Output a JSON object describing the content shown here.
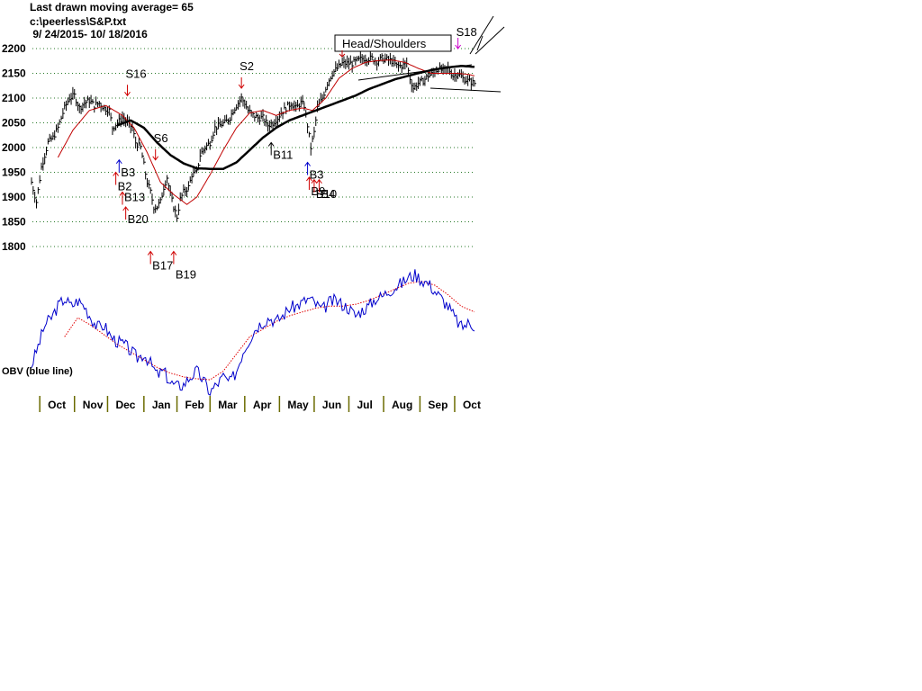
{
  "header": {
    "line1": "Last drawn moving average= 65",
    "line2": "c:\\peerless\\S&P.txt",
    "line3": " 9/ 24/2015- 10/ 18/2016"
  },
  "chart_data": {
    "type": "line",
    "price_yticks": [
      2200,
      2150,
      2100,
      2050,
      2000,
      1950,
      1900,
      1850,
      1800
    ],
    "price_ylim": [
      1790,
      2210
    ],
    "months": [
      "Oct",
      "Nov",
      "Dec",
      "Jan",
      "Feb",
      "Mar",
      "Apr",
      "May",
      "Jun",
      "Jul",
      "Aug",
      "Sep",
      "Oct"
    ],
    "x_index_range": [
      0,
      268
    ],
    "price_close_anchors": [
      [
        0,
        1930
      ],
      [
        3,
        1890
      ],
      [
        6,
        1960
      ],
      [
        10,
        2010
      ],
      [
        13,
        2020
      ],
      [
        16,
        2040
      ],
      [
        20,
        2080
      ],
      [
        23,
        2100
      ],
      [
        26,
        2105
      ],
      [
        29,
        2080
      ],
      [
        32,
        2090
      ],
      [
        35,
        2095
      ],
      [
        38,
        2085
      ],
      [
        41,
        2090
      ],
      [
        44,
        2080
      ],
      [
        47,
        2075
      ],
      [
        49,
        2040
      ],
      [
        52,
        2050
      ],
      [
        55,
        2060
      ],
      [
        58,
        2050
      ],
      [
        61,
        2040
      ],
      [
        63,
        2010
      ],
      [
        66,
        2000
      ],
      [
        68,
        1965
      ],
      [
        70,
        1930
      ],
      [
        72,
        1910
      ],
      [
        74,
        1880
      ],
      [
        76,
        1880
      ],
      [
        78,
        1890
      ],
      [
        80,
        1920
      ],
      [
        82,
        1940
      ],
      [
        84,
        1905
      ],
      [
        86,
        1880
      ],
      [
        88,
        1860
      ],
      [
        90,
        1895
      ],
      [
        92,
        1910
      ],
      [
        95,
        1920
      ],
      [
        97,
        1945
      ],
      [
        100,
        1950
      ],
      [
        102,
        1985
      ],
      [
        105,
        2000
      ],
      [
        108,
        2010
      ],
      [
        111,
        2040
      ],
      [
        114,
        2045
      ],
      [
        117,
        2050
      ],
      [
        120,
        2060
      ],
      [
        122,
        2075
      ],
      [
        125,
        2090
      ],
      [
        127,
        2100
      ],
      [
        129,
        2090
      ],
      [
        131,
        2075
      ],
      [
        134,
        2065
      ],
      [
        137,
        2060
      ],
      [
        140,
        2060
      ],
      [
        143,
        2045
      ],
      [
        146,
        2050
      ],
      [
        149,
        2060
      ],
      [
        151,
        2070
      ],
      [
        154,
        2080
      ],
      [
        157,
        2090
      ],
      [
        160,
        2080
      ],
      [
        163,
        2090
      ],
      [
        165,
        2085
      ],
      [
        167,
        2045
      ],
      [
        169,
        2000
      ],
      [
        171,
        2030
      ],
      [
        173,
        2080
      ],
      [
        176,
        2100
      ],
      [
        179,
        2130
      ],
      [
        182,
        2150
      ],
      [
        185,
        2160
      ],
      [
        188,
        2170
      ],
      [
        191,
        2170
      ],
      [
        194,
        2170
      ],
      [
        197,
        2175
      ],
      [
        200,
        2180
      ],
      [
        203,
        2180
      ],
      [
        206,
        2180
      ],
      [
        209,
        2175
      ],
      [
        212,
        2180
      ],
      [
        215,
        2178
      ],
      [
        218,
        2175
      ],
      [
        221,
        2165
      ],
      [
        224,
        2165
      ],
      [
        227,
        2170
      ],
      [
        229,
        2140
      ],
      [
        231,
        2120
      ],
      [
        234,
        2130
      ],
      [
        237,
        2135
      ],
      [
        240,
        2145
      ],
      [
        243,
        2150
      ],
      [
        246,
        2160
      ],
      [
        249,
        2155
      ],
      [
        252,
        2160
      ],
      [
        255,
        2145
      ],
      [
        258,
        2150
      ],
      [
        261,
        2140
      ],
      [
        264,
        2135
      ],
      [
        268,
        2130
      ]
    ],
    "ma21_anchors": [
      [
        16,
        1980
      ],
      [
        25,
        2035
      ],
      [
        35,
        2075
      ],
      [
        45,
        2085
      ],
      [
        55,
        2065
      ],
      [
        62,
        2040
      ],
      [
        70,
        1990
      ],
      [
        78,
        1930
      ],
      [
        86,
        1905
      ],
      [
        94,
        1885
      ],
      [
        100,
        1900
      ],
      [
        108,
        1945
      ],
      [
        116,
        1995
      ],
      [
        124,
        2040
      ],
      [
        132,
        2070
      ],
      [
        140,
        2075
      ],
      [
        148,
        2065
      ],
      [
        156,
        2075
      ],
      [
        164,
        2080
      ],
      [
        170,
        2075
      ],
      [
        178,
        2100
      ],
      [
        186,
        2140
      ],
      [
        194,
        2160
      ],
      [
        202,
        2172
      ],
      [
        210,
        2176
      ],
      [
        218,
        2177
      ],
      [
        226,
        2172
      ],
      [
        234,
        2160
      ],
      [
        242,
        2150
      ],
      [
        250,
        2150
      ],
      [
        258,
        2150
      ],
      [
        264,
        2148
      ],
      [
        268,
        2145
      ]
    ],
    "ma65_anchors": [
      [
        52,
        2045
      ],
      [
        60,
        2055
      ],
      [
        68,
        2040
      ],
      [
        76,
        2010
      ],
      [
        84,
        1985
      ],
      [
        92,
        1968
      ],
      [
        100,
        1958
      ],
      [
        108,
        1957
      ],
      [
        116,
        1957
      ],
      [
        124,
        1970
      ],
      [
        132,
        1995
      ],
      [
        140,
        2020
      ],
      [
        148,
        2040
      ],
      [
        156,
        2055
      ],
      [
        164,
        2065
      ],
      [
        172,
        2075
      ],
      [
        180,
        2085
      ],
      [
        188,
        2095
      ],
      [
        196,
        2105
      ],
      [
        204,
        2118
      ],
      [
        212,
        2128
      ],
      [
        220,
        2138
      ],
      [
        228,
        2145
      ],
      [
        236,
        2152
      ],
      [
        244,
        2158
      ],
      [
        252,
        2162
      ],
      [
        260,
        2165
      ],
      [
        268,
        2163
      ]
    ],
    "obv_anchors": [
      [
        0,
        30
      ],
      [
        4,
        50
      ],
      [
        8,
        72
      ],
      [
        12,
        80
      ],
      [
        16,
        92
      ],
      [
        20,
        100
      ],
      [
        24,
        92
      ],
      [
        28,
        98
      ],
      [
        32,
        92
      ],
      [
        36,
        80
      ],
      [
        40,
        70
      ],
      [
        44,
        72
      ],
      [
        48,
        60
      ],
      [
        52,
        55
      ],
      [
        56,
        52
      ],
      [
        60,
        45
      ],
      [
        64,
        38
      ],
      [
        68,
        42
      ],
      [
        72,
        32
      ],
      [
        76,
        20
      ],
      [
        80,
        24
      ],
      [
        84,
        12
      ],
      [
        88,
        8
      ],
      [
        92,
        10
      ],
      [
        96,
        18
      ],
      [
        100,
        24
      ],
      [
        104,
        14
      ],
      [
        108,
        2
      ],
      [
        112,
        10
      ],
      [
        116,
        18
      ],
      [
        120,
        12
      ],
      [
        124,
        24
      ],
      [
        128,
        45
      ],
      [
        132,
        58
      ],
      [
        136,
        70
      ],
      [
        140,
        76
      ],
      [
        144,
        80
      ],
      [
        148,
        76
      ],
      [
        152,
        82
      ],
      [
        156,
        90
      ],
      [
        160,
        92
      ],
      [
        164,
        96
      ],
      [
        168,
        100
      ],
      [
        172,
        94
      ],
      [
        176,
        88
      ],
      [
        180,
        96
      ],
      [
        184,
        98
      ],
      [
        188,
        94
      ],
      [
        192,
        90
      ],
      [
        196,
        82
      ],
      [
        200,
        88
      ],
      [
        204,
        92
      ],
      [
        208,
        100
      ],
      [
        212,
        102
      ],
      [
        216,
        108
      ],
      [
        220,
        112
      ],
      [
        224,
        116
      ],
      [
        228,
        122
      ],
      [
        232,
        125
      ],
      [
        236,
        120
      ],
      [
        240,
        116
      ],
      [
        244,
        108
      ],
      [
        248,
        100
      ],
      [
        252,
        92
      ],
      [
        256,
        80
      ],
      [
        260,
        70
      ],
      [
        264,
        74
      ],
      [
        268,
        72
      ]
    ],
    "obv_ma_anchors": [
      [
        20,
        60
      ],
      [
        28,
        80
      ],
      [
        36,
        72
      ],
      [
        44,
        62
      ],
      [
        52,
        52
      ],
      [
        60,
        44
      ],
      [
        68,
        36
      ],
      [
        76,
        28
      ],
      [
        84,
        22
      ],
      [
        92,
        18
      ],
      [
        100,
        16
      ],
      [
        108,
        15
      ],
      [
        116,
        24
      ],
      [
        124,
        42
      ],
      [
        132,
        60
      ],
      [
        140,
        68
      ],
      [
        148,
        76
      ],
      [
        156,
        82
      ],
      [
        164,
        86
      ],
      [
        172,
        90
      ],
      [
        180,
        92
      ],
      [
        188,
        92
      ],
      [
        196,
        94
      ],
      [
        204,
        98
      ],
      [
        212,
        104
      ],
      [
        220,
        110
      ],
      [
        228,
        116
      ],
      [
        236,
        118
      ],
      [
        244,
        114
      ],
      [
        252,
        104
      ],
      [
        260,
        92
      ],
      [
        268,
        86
      ]
    ],
    "obv_label": "OBV (blue line)",
    "head_shoulders_label": "Head/Shoulders",
    "signals": [
      {
        "label": "S16",
        "x": 58,
        "price": 2105,
        "dir": "down",
        "color": "red",
        "text_dy": -6
      },
      {
        "label": "S6",
        "x": 75,
        "price": 1975,
        "dir": "down",
        "color": "red",
        "text_dy": -6
      },
      {
        "label": "S2",
        "x": 127,
        "price": 2120,
        "dir": "down",
        "color": "red",
        "text_dy": -6
      },
      {
        "label": "B3",
        "x": 53,
        "price": 1975,
        "dir": "up",
        "color": "blue",
        "text_dy": 18
      },
      {
        "label": "B2",
        "x": 51,
        "price": 1950,
        "dir": "up",
        "color": "red",
        "text_dy": 20
      },
      {
        "label": "B13",
        "x": 55,
        "price": 1910,
        "dir": "up",
        "color": "red",
        "text_dy": 10
      },
      {
        "label": "B20",
        "x": 57,
        "price": 1880,
        "dir": "up",
        "color": "red",
        "text_dy": 18
      },
      {
        "label": "B17",
        "x": 72,
        "price": 1790,
        "dir": "up",
        "color": "red",
        "text_dy": 20
      },
      {
        "label": "B19",
        "x": 86,
        "price": 1790,
        "dir": "up",
        "color": "red",
        "text_dy": 30
      },
      {
        "label": "B11",
        "x": 145,
        "price": 2010,
        "dir": "up",
        "color": "black",
        "text_dy": 18
      },
      {
        "label": "B3",
        "x": 167,
        "price": 1970,
        "dir": "up",
        "color": "blue",
        "text_dy": 18
      },
      {
        "label": "B9",
        "x": 168,
        "price": 1940,
        "dir": "up",
        "color": "red",
        "text_dy": 20
      },
      {
        "label": "B10",
        "x": 171,
        "price": 1935,
        "dir": "up",
        "color": "red",
        "text_dy": 20
      },
      {
        "label": "B4",
        "x": 174,
        "price": 1935,
        "dir": "up",
        "color": "red",
        "text_dy": 20
      },
      {
        "label": "S18",
        "x": 258,
        "price": 2200,
        "dir": "down",
        "color": "magenta",
        "text_dy": 0
      }
    ],
    "grid": true,
    "legend": "none"
  }
}
